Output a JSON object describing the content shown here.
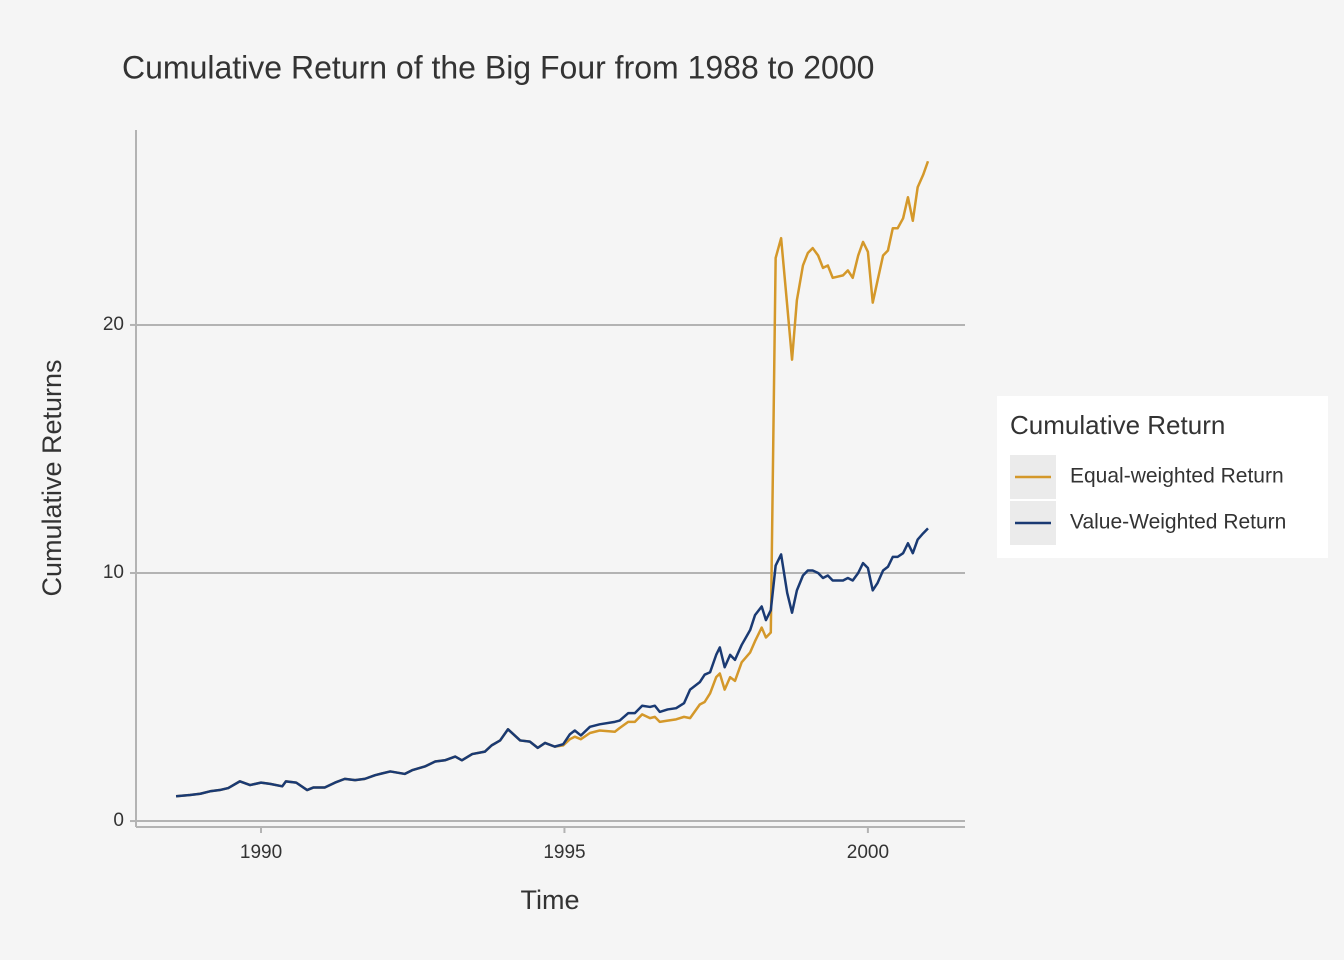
{
  "chart_data": {
    "type": "line",
    "title": "Cumulative Return of the Big Four from 1988 to 2000",
    "x_label": "Time",
    "y_label": "Cumulative Returns",
    "legend_title": "Cumulative Return",
    "legend_position": "right",
    "grid": true,
    "xlim": [
      1987.94,
      2001.6
    ],
    "xticks": [
      1990,
      1995,
      2000
    ],
    "ylim": [
      -0.24,
      27.86
    ],
    "yticks": [
      0,
      10,
      20
    ],
    "x": [
      1988.6,
      1988.83,
      1989.0,
      1989.16,
      1989.32,
      1989.46,
      1989.65,
      1989.82,
      1990.0,
      1990.15,
      1990.35,
      1990.41,
      1990.58,
      1990.76,
      1990.86,
      1991.05,
      1991.22,
      1991.38,
      1991.55,
      1991.71,
      1991.88,
      1992.13,
      1992.37,
      1992.49,
      1992.7,
      1992.87,
      1993.03,
      1993.2,
      1993.31,
      1993.48,
      1993.69,
      1993.8,
      1993.94,
      1994.07,
      1994.27,
      1994.43,
      1994.56,
      1994.68,
      1994.84,
      1994.98,
      1995.09,
      1995.17,
      1995.27,
      1995.42,
      1995.58,
      1995.83,
      1995.91,
      1996.05,
      1996.16,
      1996.28,
      1996.41,
      1996.49,
      1996.57,
      1996.7,
      1996.84,
      1996.97,
      1997.07,
      1997.23,
      1997.31,
      1997.4,
      1997.5,
      1997.56,
      1997.64,
      1997.73,
      1997.81,
      1997.92,
      1998.06,
      1998.14,
      1998.25,
      1998.32,
      1998.4,
      1998.48,
      1998.57,
      1998.67,
      1998.75,
      1998.83,
      1998.93,
      1999.01,
      1999.09,
      1999.18,
      1999.26,
      1999.34,
      1999.42,
      1999.59,
      1999.67,
      1999.75,
      1999.84,
      1999.92,
      2000.0,
      2000.08,
      2000.16,
      2000.25,
      2000.33,
      2000.41,
      2000.49,
      2000.58,
      2000.66,
      2000.74,
      2000.82,
      2000.91,
      2000.99
    ],
    "series": [
      {
        "name": "Equal-weighted Return",
        "color": "#d4982a",
        "values": [
          1.0,
          1.05,
          1.1,
          1.2,
          1.25,
          1.33,
          1.6,
          1.45,
          1.55,
          1.5,
          1.4,
          1.6,
          1.55,
          1.25,
          1.35,
          1.35,
          1.55,
          1.7,
          1.65,
          1.7,
          1.85,
          2.0,
          1.9,
          2.05,
          2.2,
          2.4,
          2.45,
          2.6,
          2.45,
          2.7,
          2.8,
          3.05,
          3.25,
          3.7,
          3.25,
          3.2,
          2.95,
          3.15,
          3.0,
          3.05,
          3.3,
          3.4,
          3.3,
          3.55,
          3.65,
          3.6,
          3.75,
          4.0,
          4.0,
          4.3,
          4.15,
          4.2,
          4.0,
          4.05,
          4.1,
          4.2,
          4.15,
          4.7,
          4.8,
          5.15,
          5.8,
          5.95,
          5.3,
          5.8,
          5.65,
          6.4,
          6.8,
          7.25,
          7.8,
          7.4,
          7.6,
          22.7,
          23.5,
          20.8,
          18.6,
          21.0,
          22.4,
          22.9,
          23.1,
          22.8,
          22.3,
          22.4,
          21.9,
          22.0,
          22.2,
          21.9,
          22.8,
          23.35,
          22.95,
          20.9,
          21.8,
          22.8,
          23.0,
          23.9,
          23.9,
          24.3,
          25.15,
          24.2,
          25.55,
          26.05,
          26.6
        ]
      },
      {
        "name": "Value-Weighted Return",
        "color": "#1a3a73",
        "values": [
          1.0,
          1.05,
          1.1,
          1.2,
          1.25,
          1.33,
          1.6,
          1.45,
          1.55,
          1.5,
          1.4,
          1.6,
          1.55,
          1.25,
          1.35,
          1.35,
          1.55,
          1.7,
          1.65,
          1.7,
          1.85,
          2.0,
          1.9,
          2.05,
          2.2,
          2.4,
          2.45,
          2.6,
          2.45,
          2.7,
          2.8,
          3.05,
          3.25,
          3.7,
          3.25,
          3.2,
          2.95,
          3.15,
          3.0,
          3.1,
          3.5,
          3.65,
          3.45,
          3.8,
          3.9,
          4.0,
          4.05,
          4.35,
          4.35,
          4.65,
          4.6,
          4.65,
          4.4,
          4.5,
          4.55,
          4.75,
          5.3,
          5.6,
          5.9,
          6.0,
          6.7,
          7.0,
          6.2,
          6.7,
          6.5,
          7.1,
          7.7,
          8.3,
          8.65,
          8.1,
          8.5,
          10.3,
          10.75,
          9.2,
          8.4,
          9.3,
          9.9,
          10.1,
          10.1,
          10.0,
          9.8,
          9.9,
          9.7,
          9.7,
          9.8,
          9.7,
          10.0,
          10.4,
          10.2,
          9.3,
          9.6,
          10.1,
          10.25,
          10.65,
          10.65,
          10.8,
          11.2,
          10.8,
          11.35,
          11.6,
          11.8
        ]
      }
    ]
  }
}
